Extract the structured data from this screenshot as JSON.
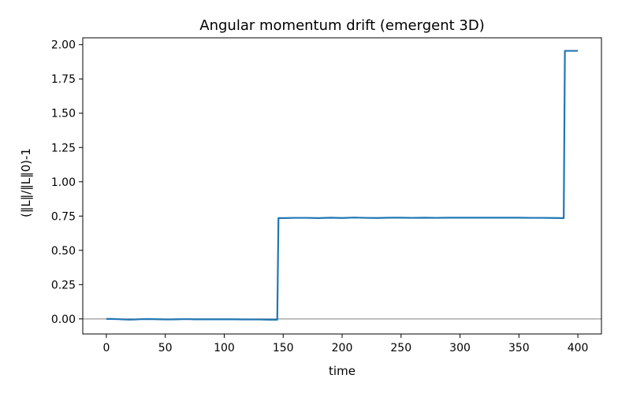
{
  "chart_data": {
    "type": "line",
    "title": "Angular momentum drift (emergent 3D)",
    "xlabel": "time",
    "ylabel": "(‖L‖/‖L‖0)-1",
    "xlim": [
      -20,
      420
    ],
    "ylim": [
      -0.11,
      2.05
    ],
    "xticks": [
      0,
      50,
      100,
      150,
      200,
      250,
      300,
      350,
      400
    ],
    "xtick_labels": [
      "0",
      "50",
      "100",
      "150",
      "200",
      "250",
      "300",
      "350",
      "400"
    ],
    "yticks": [
      0.0,
      0.25,
      0.5,
      0.75,
      1.0,
      1.25,
      1.5,
      1.75,
      2.0
    ],
    "ytick_labels": [
      "0.00",
      "0.25",
      "0.50",
      "0.75",
      "1.00",
      "1.25",
      "1.50",
      "1.75",
      "2.00"
    ],
    "grid": false,
    "reference_line": {
      "y": 0,
      "color": "#999999"
    },
    "series": [
      {
        "color": "#1f77b4",
        "x": [
          0,
          5,
          10,
          15,
          20,
          25,
          30,
          35,
          40,
          45,
          50,
          55,
          60,
          65,
          70,
          75,
          80,
          85,
          90,
          95,
          100,
          105,
          110,
          115,
          120,
          125,
          130,
          135,
          140,
          145,
          146,
          150,
          160,
          170,
          180,
          190,
          200,
          210,
          220,
          230,
          240,
          250,
          260,
          270,
          280,
          290,
          300,
          310,
          320,
          330,
          340,
          350,
          360,
          370,
          380,
          388,
          389,
          395,
          400
        ],
        "y": [
          0.0,
          0.0,
          -0.002,
          -0.004,
          -0.005,
          -0.004,
          -0.002,
          -0.001,
          -0.002,
          -0.003,
          -0.004,
          -0.004,
          -0.003,
          -0.002,
          -0.002,
          -0.003,
          -0.003,
          -0.003,
          -0.003,
          -0.003,
          -0.003,
          -0.003,
          -0.003,
          -0.004,
          -0.004,
          -0.004,
          -0.004,
          -0.005,
          -0.006,
          -0.006,
          0.735,
          0.735,
          0.737,
          0.737,
          0.735,
          0.738,
          0.736,
          0.739,
          0.737,
          0.736,
          0.738,
          0.738,
          0.737,
          0.738,
          0.737,
          0.738,
          0.738,
          0.738,
          0.738,
          0.738,
          0.738,
          0.738,
          0.737,
          0.737,
          0.736,
          0.735,
          1.955,
          1.955,
          1.955
        ]
      }
    ]
  }
}
